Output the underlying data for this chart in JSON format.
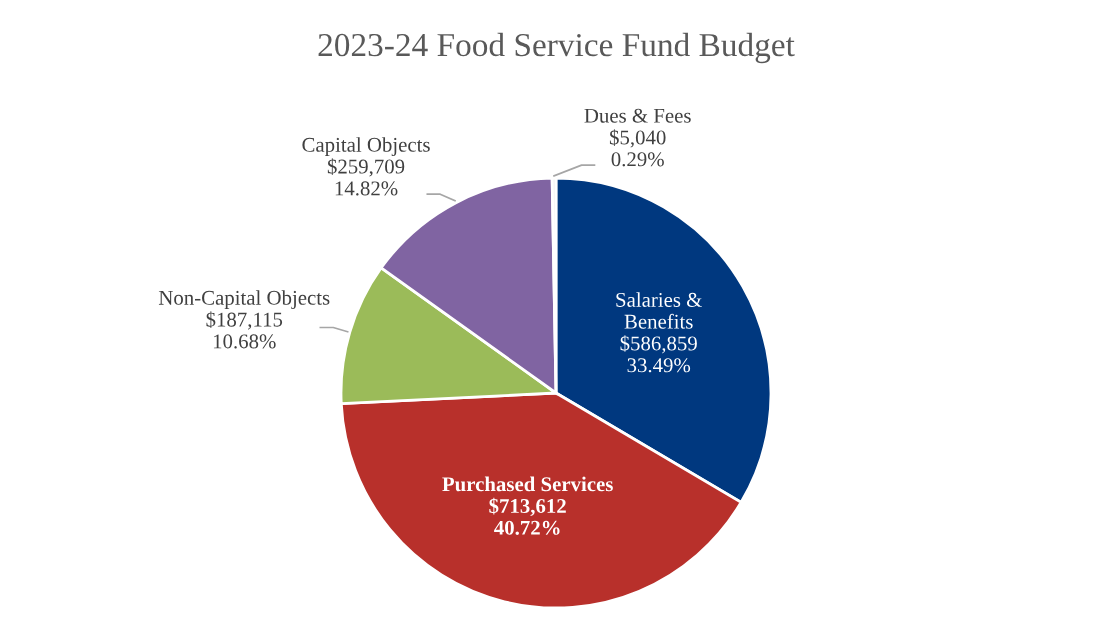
{
  "chart_data": {
    "type": "pie",
    "title": "2023-24 Food Service Fund Budget",
    "categories": [
      "Salaries & Benefits",
      "Purchased Services",
      "Non-Capital Objects",
      "Capital Objects",
      "Dues & Fees"
    ],
    "values": [
      586859,
      713612,
      187115,
      259709,
      5040
    ],
    "colors": [
      "#00387f",
      "#b8302b",
      "#9bbb59",
      "#8064a2",
      "#f2f2f2"
    ],
    "value_labels": [
      "$586,859\n33.49%",
      "$713,612\n40.72%",
      "$187,115\n10.68%",
      "$259,709\n14.82%",
      "$5,040\n0.29%"
    ],
    "legend": false
  }
}
